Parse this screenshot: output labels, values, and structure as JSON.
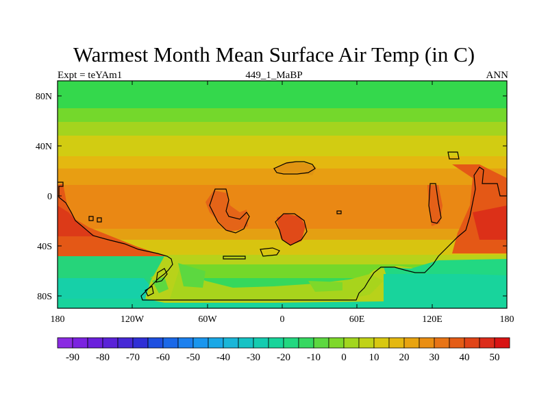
{
  "title": "Warmest Month Mean Surface Air Temp (in C)",
  "subtitle_left": "Expt = teYAm1",
  "subtitle_center": "449_1_MaBP",
  "subtitle_right": "ANN",
  "lat_labels": [
    "80N",
    "40N",
    "0",
    "40S",
    "80S"
  ],
  "lon_labels": [
    "180",
    "120W",
    "60W",
    "0",
    "60E",
    "120E",
    "180"
  ],
  "colorbar": {
    "tick_labels": [
      "-90",
      "-80",
      "-70",
      "-60",
      "-50",
      "-40",
      "-30",
      "-20",
      "-10",
      "0",
      "10",
      "20",
      "30",
      "40",
      "50"
    ],
    "colors": [
      "#8a2be2",
      "#7b22e0",
      "#6a1fdc",
      "#5a22d8",
      "#4628d6",
      "#2f2fd6",
      "#1d4fe0",
      "#1a68e8",
      "#1c80ee",
      "#1a96ee",
      "#1aa8e6",
      "#1ab6d8",
      "#16c2c4",
      "#14ccb0",
      "#18d49a",
      "#22d880",
      "#36d860",
      "#5cd840",
      "#7ed82a",
      "#a2d61e",
      "#c0d216",
      "#d8c810",
      "#e4b810",
      "#e8a410",
      "#ea8e12",
      "#e87416",
      "#e45c16",
      "#e04418",
      "#dc2c1a",
      "#d81414"
    ]
  }
}
